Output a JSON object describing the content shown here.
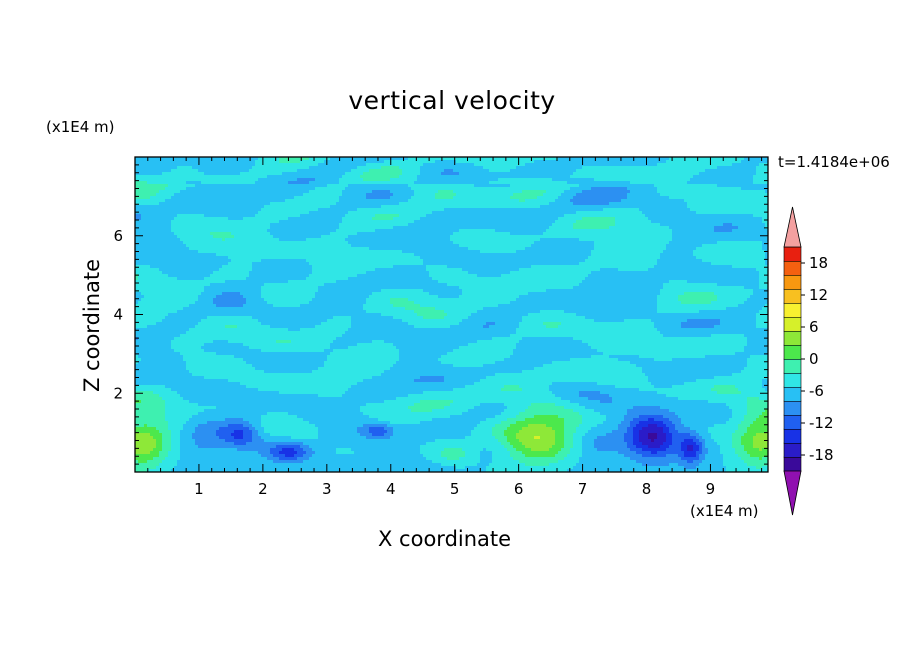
{
  "chart_data": {
    "type": "heatmap",
    "title": "vertical velocity",
    "xlabel": "X coordinate",
    "ylabel": "Z coordinate",
    "x_unit": "(x1E4 m)",
    "y_unit": "(x1E4 m)",
    "time_label": "t=1.4184e+06",
    "xlim": [
      0,
      9.9
    ],
    "ylim": [
      0,
      8
    ],
    "x_ticks": [
      1,
      2,
      3,
      4,
      5,
      6,
      7,
      8,
      9
    ],
    "y_ticks": [
      2,
      4,
      6
    ],
    "colorbar": {
      "ticks": [
        "18",
        "12",
        "6",
        "0",
        "-6",
        "-12",
        "-18"
      ],
      "tick_values": [
        18,
        12,
        6,
        0,
        -6,
        -12,
        -18
      ],
      "min": -21,
      "max": 21,
      "step": 3
    },
    "features": [
      {
        "x": 6.3,
        "z": 0.9,
        "w": 12,
        "sx": 0.6,
        "sz": 0.75
      },
      {
        "x": 9.8,
        "z": 0.85,
        "w": 11,
        "sx": 0.45,
        "sz": 0.8
      },
      {
        "x": 0.1,
        "z": 0.75,
        "w": 11,
        "sx": 0.45,
        "sz": 0.85
      },
      {
        "x": 8.1,
        "z": 0.9,
        "w": -15,
        "sx": 0.4,
        "sz": 0.55
      },
      {
        "x": 8.7,
        "z": 0.6,
        "w": -10,
        "sx": 0.18,
        "sz": 0.4
      },
      {
        "x": 1.65,
        "z": 0.95,
        "w": -8,
        "sx": 0.3,
        "sz": 0.35
      },
      {
        "x": 2.4,
        "z": 0.5,
        "w": -8,
        "sx": 0.32,
        "sz": 0.25
      },
      {
        "x": 3.8,
        "z": 1.05,
        "w": -7,
        "sx": 0.22,
        "sz": 0.18
      },
      {
        "x": 2.3,
        "z": 1.6,
        "w": 3,
        "sx": 0.35,
        "sz": 0.25
      },
      {
        "x": 5.0,
        "z": 0.45,
        "w": 5,
        "sx": 0.35,
        "sz": 0.3
      },
      {
        "x": 7.2,
        "z": 0.7,
        "w": -3,
        "sx": 0.4,
        "sz": 0.5
      },
      {
        "x": 1.1,
        "z": 0.9,
        "w": -3,
        "sx": 0.35,
        "sz": 0.6
      }
    ]
  }
}
